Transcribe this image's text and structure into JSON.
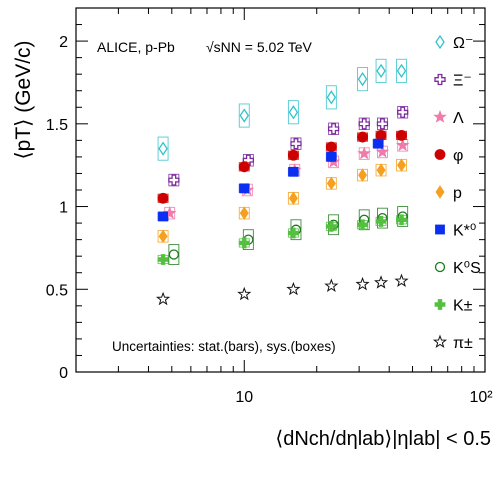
{
  "chart_data": {
    "type": "scatter",
    "x_scale": "log",
    "y_scale": "linear",
    "xlim": [
      2,
      100
    ],
    "ylim": [
      0,
      2.2
    ],
    "y_ticks": [
      0,
      0.5,
      1,
      1.5,
      2
    ],
    "y_tick_labels": [
      "0",
      "0.5",
      "1",
      "1.5",
      "2"
    ],
    "x_ticks": [
      10,
      100
    ],
    "x_tick_labels": [
      "10",
      "10²"
    ],
    "grid": false,
    "legend_position": "right",
    "ylabel": "⟨pT⟩ (GeV/c)",
    "xlabel": "⟨dNch/dηlab⟩|ηlab| < 0.5",
    "annotation_experiment": "ALICE, p-Pb",
    "annotation_energy": "√sNN = 5.02 TeV",
    "annotation_uncertainties": "Uncertainties: stat.(bars), sys.(boxes)",
    "series": [
      {
        "name": "Ω⁻",
        "marker": "diamond-open",
        "color": "#33c2cc",
        "x": [
          4.6,
          10.0,
          16.0,
          23.0,
          31.0,
          37.0,
          45.0
        ],
        "y": [
          1.35,
          1.55,
          1.57,
          1.66,
          1.77,
          1.82,
          1.82
        ]
      },
      {
        "name": "Ξ⁻",
        "marker": "cross-open",
        "color": "#7d2a9e",
        "x": [
          5.1,
          10.4,
          16.4,
          23.5,
          31.5,
          37.5,
          45.5
        ],
        "y": [
          1.16,
          1.28,
          1.38,
          1.47,
          1.5,
          1.5,
          1.57
        ]
      },
      {
        "name": "Λ",
        "marker": "star",
        "color": "#f07aaa",
        "x": [
          4.9,
          10.3,
          16.2,
          23.5,
          31.5,
          37.5,
          45.5
        ],
        "y": [
          0.96,
          1.1,
          1.22,
          1.27,
          1.32,
          1.33,
          1.37
        ]
      },
      {
        "name": "φ",
        "marker": "circle",
        "color": "#cc0000",
        "x": [
          4.6,
          10.0,
          16.0,
          23.0,
          31.0,
          37.0,
          45.0
        ],
        "y": [
          1.05,
          1.24,
          1.31,
          1.36,
          1.42,
          1.43,
          1.43
        ]
      },
      {
        "name": "p",
        "marker": "diamond",
        "color": "#f5a020",
        "x": [
          4.6,
          10.0,
          16.0,
          23.0,
          31.0,
          37.0,
          45.0
        ],
        "y": [
          0.82,
          0.96,
          1.05,
          1.14,
          1.19,
          1.22,
          1.25
        ]
      },
      {
        "name": "K*⁰",
        "marker": "square",
        "color": "#0a2ff0",
        "x": [
          4.6,
          10.0,
          16.0,
          23.0,
          36.0
        ],
        "y": [
          0.94,
          1.11,
          1.21,
          1.3,
          1.38
        ]
      },
      {
        "name": "K⁰S",
        "marker": "circle-open",
        "color": "#1a7a1a",
        "x": [
          5.1,
          10.4,
          16.4,
          23.5,
          31.5,
          37.5,
          45.5
        ],
        "y": [
          0.71,
          0.8,
          0.86,
          0.89,
          0.92,
          0.93,
          0.94
        ]
      },
      {
        "name": "K±",
        "marker": "cross",
        "color": "#55c040",
        "x": [
          4.6,
          10.0,
          16.0,
          23.0,
          31.0,
          37.0,
          45.0
        ],
        "y": [
          0.68,
          0.78,
          0.84,
          0.88,
          0.89,
          0.91,
          0.92
        ]
      },
      {
        "name": "π±",
        "marker": "star-open",
        "color": "#111111",
        "x": [
          4.6,
          10.0,
          16.0,
          23.0,
          31.0,
          37.0,
          45.0
        ],
        "y": [
          0.44,
          0.47,
          0.5,
          0.52,
          0.53,
          0.54,
          0.55
        ]
      }
    ]
  }
}
